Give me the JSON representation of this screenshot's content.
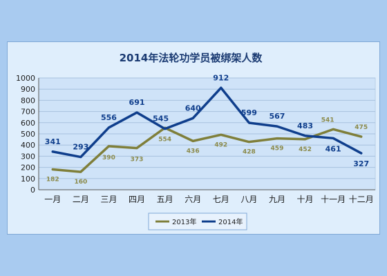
{
  "chart_data": {
    "type": "line",
    "title": "2014年法轮功学员被绑架人数",
    "categories": [
      "一月",
      "二月",
      "三月",
      "四月",
      "五月",
      "六月",
      "七月",
      "八月",
      "九月",
      "十月",
      "十一月",
      "十二月"
    ],
    "series": [
      {
        "name": "2013年",
        "values": [
          182,
          160,
          390,
          373,
          554,
          436,
          492,
          428,
          459,
          452,
          541,
          475
        ],
        "color": "#7f7f3a"
      },
      {
        "name": "2014年",
        "values": [
          341,
          293,
          556,
          691,
          545,
          640,
          912,
          599,
          567,
          483,
          461,
          327
        ],
        "color": "#0f3e8c"
      }
    ],
    "ylim": [
      0,
      1000
    ],
    "yticks": [
      0,
      100,
      200,
      300,
      400,
      500,
      600,
      700,
      800,
      900,
      1000
    ],
    "grid": true,
    "legend_position": "bottom"
  }
}
